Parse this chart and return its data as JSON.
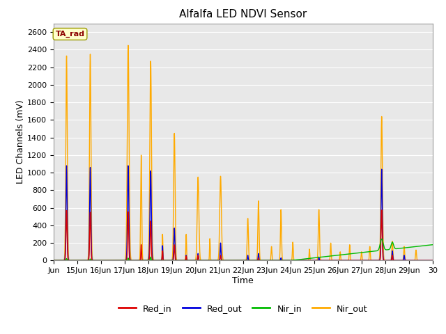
{
  "title": "Alfalfa LED NDVI Sensor",
  "xlabel": "Time",
  "ylabel": "LED Channels (mV)",
  "legend_label": "TA_rad",
  "series_labels": [
    "Red_in",
    "Red_out",
    "Nir_in",
    "Nir_out"
  ],
  "series_colors": [
    "#dd0000",
    "#0000dd",
    "#00bb00",
    "#ffaa00"
  ],
  "x_start": 14.0,
  "x_end": 30.0,
  "ylim": [
    0,
    2700
  ],
  "yticks": [
    0,
    200,
    400,
    600,
    800,
    1000,
    1200,
    1400,
    1600,
    1800,
    2000,
    2200,
    2400,
    2600
  ],
  "xtick_labels": [
    "Jun",
    "15Jun",
    "16Jun",
    "17Jun",
    "18Jun",
    "19Jun",
    "20Jun",
    "21Jun",
    "22Jun",
    "23Jun",
    "24Jun",
    "25Jun",
    "26Jun",
    "27Jun",
    "28Jun",
    "29Jun",
    "30"
  ],
  "xtick_positions": [
    14.0,
    15.0,
    16.0,
    17.0,
    18.0,
    19.0,
    20.0,
    21.0,
    22.0,
    23.0,
    24.0,
    25.0,
    26.0,
    27.0,
    28.0,
    29.0,
    30.0
  ],
  "background_color": "#e8e8e8",
  "grid_color": "#ffffff",
  "linewidth": 1.0,
  "figsize": [
    6.4,
    4.8
  ],
  "dpi": 100
}
